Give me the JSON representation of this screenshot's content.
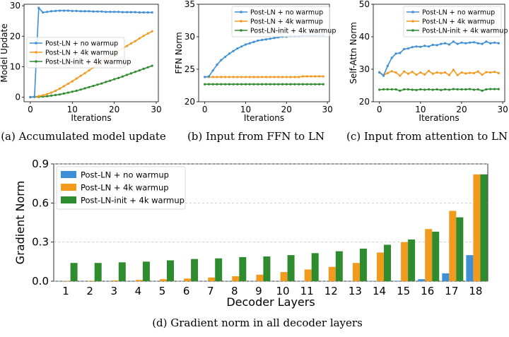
{
  "colors": {
    "blue": "#3f8fd6",
    "orange": "#f29a1e",
    "green": "#2e8b2e"
  },
  "chart_data": [
    {
      "id": "a",
      "type": "line",
      "caption": "(a) Accumulated model update",
      "xlabel": "Iterations",
      "ylabel": "Model Update",
      "xlim": [
        -1.5,
        30.5
      ],
      "ylim": [
        -1.5,
        30.5
      ],
      "xticks": [
        0,
        10,
        20,
        30
      ],
      "yticks": [
        0,
        10,
        20,
        30
      ],
      "legend_loc": "center-left",
      "series": [
        {
          "name": "Post-LN + no warmup",
          "color": "blue",
          "x": [
            0,
            1,
            2,
            3,
            4,
            5,
            6,
            7,
            8,
            9,
            10,
            11,
            12,
            13,
            14,
            15,
            16,
            17,
            18,
            19,
            20,
            21,
            22,
            23,
            24,
            25,
            26,
            27,
            28,
            29
          ],
          "values": [
            0,
            0.2,
            29.3,
            27.8,
            28.0,
            28.2,
            28.3,
            28.4,
            28.4,
            28.4,
            28.3,
            28.3,
            28.2,
            28.2,
            28.2,
            28.1,
            28.1,
            28.1,
            28.0,
            28.0,
            28.0,
            28.0,
            27.9,
            27.9,
            27.9,
            27.9,
            27.8,
            27.8,
            27.8,
            27.8
          ]
        },
        {
          "name": "Post-LN + 4k warmup",
          "color": "orange",
          "x": [
            0,
            1,
            2,
            3,
            4,
            5,
            6,
            7,
            8,
            9,
            10,
            11,
            12,
            13,
            14,
            15,
            16,
            17,
            18,
            19,
            20,
            21,
            22,
            23,
            24,
            25,
            26,
            27,
            28,
            29
          ],
          "values": [
            0,
            0.1,
            0.3,
            0.6,
            1.0,
            1.5,
            2.1,
            2.8,
            3.6,
            4.4,
            5.2,
            6.1,
            7.0,
            7.9,
            8.8,
            9.8,
            10.7,
            11.6,
            12.5,
            13.4,
            14.3,
            15.2,
            16.0,
            16.8,
            17.6,
            18.4,
            19.3,
            20.1,
            20.9,
            21.6
          ]
        },
        {
          "name": "Post-LN-init + 4k warmup",
          "color": "green",
          "x": [
            0,
            1,
            2,
            3,
            4,
            5,
            6,
            7,
            8,
            9,
            10,
            11,
            12,
            13,
            14,
            15,
            16,
            17,
            18,
            19,
            20,
            21,
            22,
            23,
            24,
            25,
            26,
            27,
            28,
            29
          ],
          "values": [
            0,
            0.05,
            0.1,
            0.2,
            0.3,
            0.5,
            0.7,
            0.9,
            1.2,
            1.5,
            1.8,
            2.1,
            2.5,
            2.9,
            3.3,
            3.7,
            4.1,
            4.5,
            5.0,
            5.4,
            5.9,
            6.3,
            6.8,
            7.3,
            7.8,
            8.3,
            8.8,
            9.3,
            9.8,
            10.3
          ]
        }
      ]
    },
    {
      "id": "b",
      "type": "line",
      "caption": "(b) Input from FFN to LN",
      "xlabel": "Iterations",
      "ylabel": "FFN Norm",
      "xlim": [
        -1.5,
        30.5
      ],
      "ylim": [
        20,
        35
      ],
      "xticks": [
        0,
        10,
        20,
        30
      ],
      "yticks": [
        20,
        25,
        30,
        35
      ],
      "legend_loc": "top-center",
      "series": [
        {
          "name": "Post-LN + no warmup",
          "color": "blue",
          "x": [
            0,
            1,
            2,
            3,
            4,
            5,
            6,
            7,
            8,
            9,
            10,
            11,
            12,
            13,
            14,
            15,
            16,
            17,
            18,
            19,
            20,
            21,
            22,
            23,
            24,
            25,
            26,
            27,
            28,
            29
          ],
          "values": [
            23.8,
            23.9,
            24.8,
            25.7,
            26.4,
            26.9,
            27.4,
            27.8,
            28.2,
            28.5,
            28.8,
            29.0,
            29.2,
            29.4,
            29.5,
            29.6,
            29.7,
            29.8,
            29.9,
            30.0,
            30.0,
            30.1,
            30.1,
            30.1,
            30.2,
            30.2,
            30.2,
            30.2,
            30.2,
            30.2
          ]
        },
        {
          "name": "Post-LN + 4k warmup",
          "color": "orange",
          "x": [
            0,
            1,
            2,
            3,
            4,
            5,
            6,
            7,
            8,
            9,
            10,
            11,
            12,
            13,
            14,
            15,
            16,
            17,
            18,
            19,
            20,
            21,
            22,
            23,
            24,
            25,
            26,
            27,
            28,
            29
          ],
          "values": [
            23.8,
            23.8,
            23.8,
            23.8,
            23.8,
            23.8,
            23.8,
            23.8,
            23.8,
            23.8,
            23.8,
            23.8,
            23.8,
            23.8,
            23.8,
            23.8,
            23.8,
            23.8,
            23.8,
            23.8,
            23.8,
            23.8,
            23.8,
            23.8,
            23.9,
            23.9,
            23.9,
            23.9,
            23.9,
            23.9
          ]
        },
        {
          "name": "Post-LN-init + 4k warmup",
          "color": "green",
          "x": [
            0,
            1,
            2,
            3,
            4,
            5,
            6,
            7,
            8,
            9,
            10,
            11,
            12,
            13,
            14,
            15,
            16,
            17,
            18,
            19,
            20,
            21,
            22,
            23,
            24,
            25,
            26,
            27,
            28,
            29
          ],
          "values": [
            22.7,
            22.7,
            22.7,
            22.7,
            22.7,
            22.7,
            22.7,
            22.7,
            22.7,
            22.7,
            22.7,
            22.7,
            22.7,
            22.7,
            22.7,
            22.7,
            22.7,
            22.7,
            22.7,
            22.7,
            22.7,
            22.7,
            22.7,
            22.7,
            22.7,
            22.7,
            22.7,
            22.7,
            22.7,
            22.7
          ]
        }
      ]
    },
    {
      "id": "c",
      "type": "line",
      "caption": "(c) Input from attention to LN",
      "xlabel": "Iterations",
      "ylabel": "Self-Attn Norm",
      "xlim": [
        -1.5,
        30.5
      ],
      "ylim": [
        20,
        50
      ],
      "xticks": [
        0,
        10,
        20,
        30
      ],
      "yticks": [
        20,
        30,
        40,
        50
      ],
      "legend_loc": "top-right",
      "series": [
        {
          "name": "Post-LN + no warmup",
          "color": "blue",
          "x": [
            0,
            1,
            2,
            3,
            4,
            5,
            6,
            7,
            8,
            9,
            10,
            11,
            12,
            13,
            14,
            15,
            16,
            17,
            18,
            19,
            20,
            21,
            22,
            23,
            24,
            25,
            26,
            27,
            28,
            29
          ],
          "values": [
            29.0,
            28.0,
            31.0,
            33.5,
            34.8,
            35.0,
            36.2,
            36.4,
            36.8,
            37.0,
            36.9,
            37.2,
            37.0,
            37.5,
            37.4,
            37.8,
            38.0,
            37.6,
            38.5,
            37.8,
            38.2,
            38.0,
            38.2,
            38.3,
            38.0,
            37.8,
            38.5,
            38.0,
            38.2,
            38.0
          ]
        },
        {
          "name": "Post-LN + 4k warmup",
          "color": "orange",
          "x": [
            0,
            1,
            2,
            3,
            4,
            5,
            6,
            7,
            8,
            9,
            10,
            11,
            12,
            13,
            14,
            15,
            16,
            17,
            18,
            19,
            20,
            21,
            22,
            23,
            24,
            25,
            26,
            27,
            28,
            29
          ],
          "values": [
            29.1,
            28.2,
            28.8,
            29.4,
            29.0,
            28.0,
            29.3,
            28.6,
            29.2,
            28.3,
            29.0,
            28.4,
            29.5,
            28.6,
            29.0,
            28.8,
            29.0,
            28.2,
            29.8,
            28.2,
            29.0,
            28.7,
            28.9,
            28.8,
            29.3,
            28.3,
            29.1,
            29.0,
            29.2,
            28.8
          ]
        },
        {
          "name": "Post-LN-init + 4k warmup",
          "color": "green",
          "x": [
            0,
            1,
            2,
            3,
            4,
            5,
            6,
            7,
            8,
            9,
            10,
            11,
            12,
            13,
            14,
            15,
            16,
            17,
            18,
            19,
            20,
            21,
            22,
            23,
            24,
            25,
            26,
            27,
            28,
            29
          ],
          "values": [
            23.7,
            23.8,
            23.8,
            23.8,
            23.8,
            23.4,
            23.8,
            23.8,
            23.7,
            23.6,
            23.8,
            23.7,
            23.8,
            23.7,
            23.8,
            23.6,
            23.8,
            23.7,
            23.9,
            23.8,
            23.8,
            23.8,
            23.9,
            23.7,
            23.8,
            23.4,
            23.8,
            23.9,
            23.9,
            23.9
          ]
        }
      ]
    },
    {
      "id": "d",
      "type": "bar",
      "caption": "(d) Gradient norm in all decoder layers",
      "xlabel": "Decoder Layers",
      "ylabel": "Gradient Norm",
      "ylim": [
        0,
        0.9
      ],
      "yticks": [
        0.0,
        0.3,
        0.6,
        0.9
      ],
      "ytick_labels": [
        "0.0",
        "0.3",
        "0.6",
        "0.9"
      ],
      "grid": true,
      "legend_loc": "top-left",
      "categories": [
        "1",
        "2",
        "3",
        "4",
        "5",
        "6",
        "7",
        "8",
        "9",
        "10",
        "11",
        "12",
        "13",
        "14",
        "15",
        "16",
        "17",
        "18"
      ],
      "series": [
        {
          "name": "Post-LN + no warmup",
          "color": "blue",
          "values": [
            0.001,
            0.001,
            0.001,
            0.001,
            0.001,
            0.001,
            0.001,
            0.001,
            0.001,
            0.001,
            0.001,
            0.001,
            0.001,
            0.002,
            0.003,
            0.015,
            0.06,
            0.2
          ]
        },
        {
          "name": "Post-LN + 4k warmup",
          "color": "orange",
          "values": [
            0.003,
            0.004,
            0.006,
            0.01,
            0.015,
            0.02,
            0.028,
            0.038,
            0.05,
            0.07,
            0.09,
            0.11,
            0.14,
            0.22,
            0.3,
            0.4,
            0.54,
            0.82
          ]
        },
        {
          "name": "Post-LN-init + 4k warmup",
          "color": "green",
          "values": [
            0.14,
            0.14,
            0.145,
            0.15,
            0.16,
            0.17,
            0.175,
            0.185,
            0.19,
            0.2,
            0.215,
            0.23,
            0.25,
            0.28,
            0.32,
            0.38,
            0.49,
            0.82
          ]
        }
      ]
    }
  ]
}
